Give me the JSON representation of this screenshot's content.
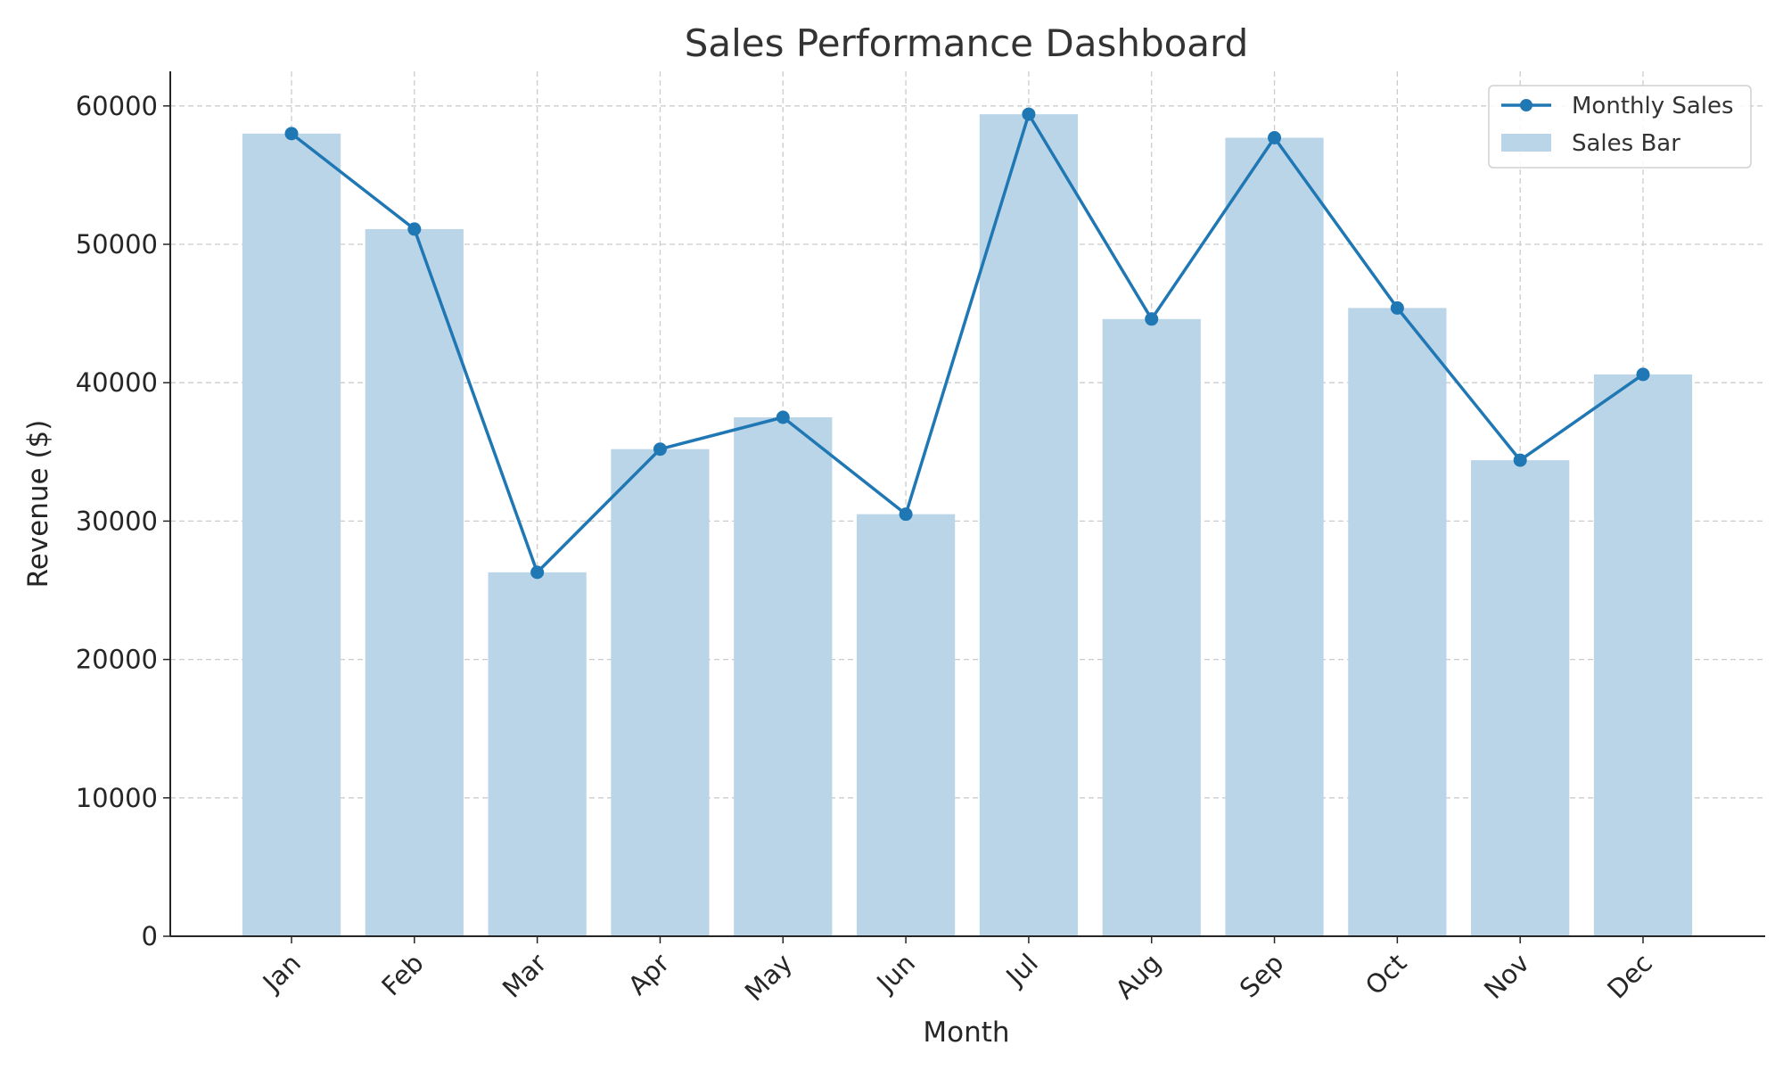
{
  "chart_data": {
    "type": "bar",
    "title": "Sales Performance Dashboard",
    "xlabel": "Month",
    "ylabel": "Revenue ($)",
    "categories": [
      "Jan",
      "Feb",
      "Mar",
      "Apr",
      "May",
      "Jun",
      "Jul",
      "Aug",
      "Sep",
      "Oct",
      "Nov",
      "Dec"
    ],
    "ylim": [
      0,
      62500
    ],
    "yticks": [
      0,
      10000,
      20000,
      30000,
      40000,
      50000,
      60000
    ],
    "grid": true,
    "legend_position": "top-right",
    "series": [
      {
        "name": "Sales Bar",
        "type": "bar",
        "color": "#bbd5e8",
        "values": [
          58000,
          51100,
          26300,
          35200,
          37500,
          30500,
          59400,
          44600,
          57700,
          45400,
          34400,
          40600
        ]
      },
      {
        "name": "Monthly Sales",
        "type": "line",
        "color": "#1f77b4",
        "marker": "circle",
        "values": [
          58000,
          51100,
          26300,
          35200,
          37500,
          30500,
          59400,
          44600,
          57700,
          45400,
          34400,
          40600
        ]
      }
    ]
  }
}
